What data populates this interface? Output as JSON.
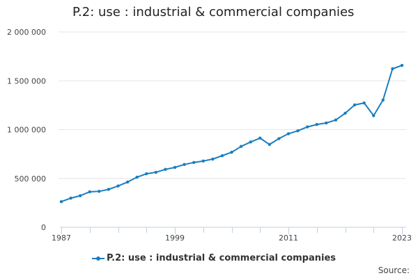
{
  "colors": {
    "series": "#1a7ebf",
    "grid": "#e6e6e6",
    "axis": "#c0d0e0",
    "text": "#444444"
  },
  "source_label": "Source:",
  "chart_data": {
    "type": "line",
    "title": "P.2: use : industrial & commercial companies",
    "xlabel": "",
    "ylabel": "",
    "xlim": [
      1987,
      2023
    ],
    "ylim": [
      0,
      2000000
    ],
    "yticks": [
      0,
      500000,
      1000000,
      1500000,
      2000000
    ],
    "ytick_labels": [
      "0",
      "500 000",
      "1 000 000",
      "1 500 000",
      "2 000 000"
    ],
    "xticks": [
      1987,
      1999,
      2011,
      2023
    ],
    "xtick_labels": [
      "1987",
      "1999",
      "2011",
      "2023"
    ],
    "legend_position": "bottom",
    "x": [
      1987,
      1988,
      1989,
      1990,
      1991,
      1992,
      1993,
      1994,
      1995,
      1996,
      1997,
      1998,
      1999,
      2000,
      2001,
      2002,
      2003,
      2004,
      2005,
      2006,
      2007,
      2008,
      2009,
      2010,
      2011,
      2012,
      2013,
      2014,
      2015,
      2016,
      2017,
      2018,
      2019,
      2020,
      2021,
      2022,
      2023
    ],
    "series": [
      {
        "name": "P.2: use : industrial & commercial companies",
        "values": [
          262000,
          298000,
          323000,
          363000,
          368000,
          388000,
          423000,
          463000,
          513000,
          548000,
          563000,
          593000,
          613000,
          643000,
          663000,
          678000,
          698000,
          733000,
          768000,
          828000,
          873000,
          913000,
          848000,
          908000,
          958000,
          988000,
          1028000,
          1053000,
          1068000,
          1098000,
          1168000,
          1253000,
          1273000,
          1143000,
          1303000,
          1623000,
          1658000
        ]
      }
    ]
  }
}
